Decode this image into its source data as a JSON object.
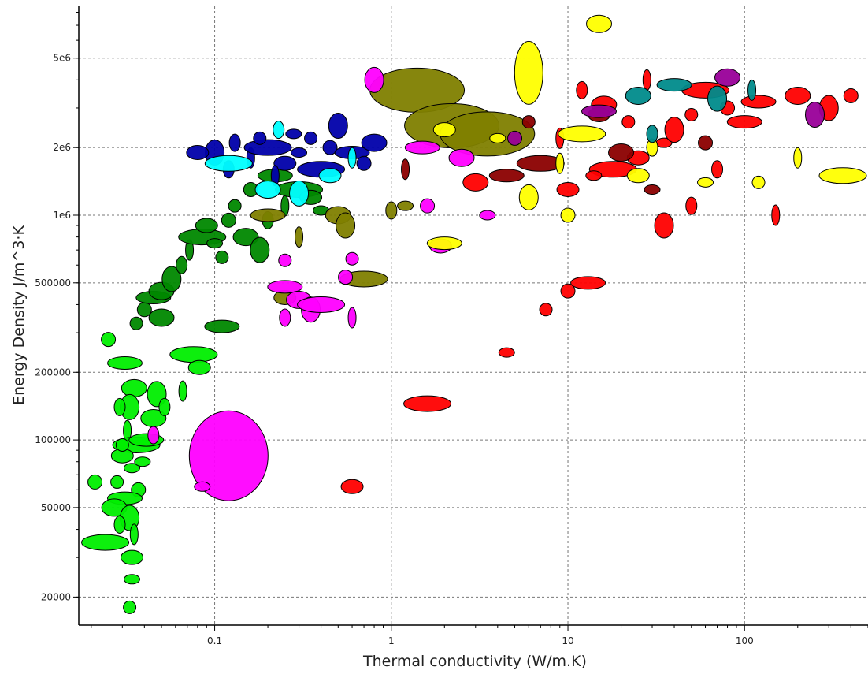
{
  "chart_data": {
    "type": "scatter",
    "title": "",
    "xlabel": "Thermal conductivity (W/m.K)",
    "ylabel": "Energy Density J/m^3·K",
    "x_scale": "log",
    "y_scale": "log",
    "xlim": [
      0.017,
      500
    ],
    "ylim": [
      15000,
      8500000
    ],
    "x_ticks": [
      {
        "value": 0.1,
        "label": "0.1"
      },
      {
        "value": 1,
        "label": "1"
      },
      {
        "value": 10,
        "label": "10"
      },
      {
        "value": 100,
        "label": "100"
      }
    ],
    "y_ticks": [
      {
        "value": 20000,
        "label": "20000"
      },
      {
        "value": 50000,
        "label": "50000"
      },
      {
        "value": 100000,
        "label": "100000"
      },
      {
        "value": 200000,
        "label": "200000"
      },
      {
        "value": 500000,
        "label": "500000"
      },
      {
        "value": 1000000,
        "label": "1e6"
      },
      {
        "value": 2000000,
        "label": "2e6"
      },
      {
        "value": 5000000,
        "label": "5e6"
      }
    ],
    "grid": true,
    "legend": "none",
    "mark_shape": "ellipse",
    "mark_outline_color": "#000000",
    "series": [
      {
        "color": "#00ee00",
        "points": [
          {
            "x": 0.025,
            "y": 280000
          },
          {
            "x": 0.031,
            "y": 220000
          },
          {
            "x": 0.035,
            "y": 170000
          },
          {
            "x": 0.033,
            "y": 140000
          },
          {
            "x": 0.029,
            "y": 140000
          },
          {
            "x": 0.032,
            "y": 110000
          },
          {
            "x": 0.036,
            "y": 95000
          },
          {
            "x": 0.03,
            "y": 85000
          },
          {
            "x": 0.034,
            "y": 75000
          },
          {
            "x": 0.028,
            "y": 65000
          },
          {
            "x": 0.037,
            "y": 60000
          },
          {
            "x": 0.031,
            "y": 55000
          },
          {
            "x": 0.027,
            "y": 50000
          },
          {
            "x": 0.033,
            "y": 45000
          },
          {
            "x": 0.029,
            "y": 42000
          },
          {
            "x": 0.035,
            "y": 38000
          },
          {
            "x": 0.024,
            "y": 35000
          },
          {
            "x": 0.034,
            "y": 30000
          },
          {
            "x": 0.034,
            "y": 24000
          },
          {
            "x": 0.033,
            "y": 18000
          },
          {
            "x": 0.021,
            "y": 65000
          },
          {
            "x": 0.041,
            "y": 100000
          },
          {
            "x": 0.045,
            "y": 125000
          },
          {
            "x": 0.047,
            "y": 160000
          },
          {
            "x": 0.052,
            "y": 140000
          },
          {
            "x": 0.066,
            "y": 165000
          },
          {
            "x": 0.076,
            "y": 240000
          },
          {
            "x": 0.082,
            "y": 210000
          },
          {
            "x": 0.039,
            "y": 80000
          },
          {
            "x": 0.03,
            "y": 95000
          }
        ]
      },
      {
        "color": "#008800",
        "points": [
          {
            "x": 0.036,
            "y": 330000
          },
          {
            "x": 0.04,
            "y": 380000
          },
          {
            "x": 0.045,
            "y": 430000
          },
          {
            "x": 0.05,
            "y": 460000
          },
          {
            "x": 0.057,
            "y": 520000
          },
          {
            "x": 0.065,
            "y": 600000
          },
          {
            "x": 0.072,
            "y": 700000
          },
          {
            "x": 0.085,
            "y": 800000
          },
          {
            "x": 0.09,
            "y": 900000
          },
          {
            "x": 0.1,
            "y": 750000
          },
          {
            "x": 0.11,
            "y": 650000
          },
          {
            "x": 0.12,
            "y": 950000
          },
          {
            "x": 0.11,
            "y": 320000
          },
          {
            "x": 0.15,
            "y": 800000
          },
          {
            "x": 0.18,
            "y": 700000
          },
          {
            "x": 0.2,
            "y": 950000
          },
          {
            "x": 0.25,
            "y": 1100000
          },
          {
            "x": 0.3,
            "y": 1300000
          },
          {
            "x": 0.35,
            "y": 1200000
          },
          {
            "x": 0.4,
            "y": 1050000
          },
          {
            "x": 0.13,
            "y": 1100000
          },
          {
            "x": 0.16,
            "y": 1300000
          },
          {
            "x": 0.22,
            "y": 1500000
          },
          {
            "x": 0.05,
            "y": 350000
          }
        ]
      },
      {
        "color": "#808000",
        "points": [
          {
            "x": 1.4,
            "y": 3600000
          },
          {
            "x": 2.2,
            "y": 2500000
          },
          {
            "x": 3.5,
            "y": 2300000
          },
          {
            "x": 0.2,
            "y": 1000000
          },
          {
            "x": 0.5,
            "y": 1000000
          },
          {
            "x": 0.55,
            "y": 900000
          },
          {
            "x": 1.0,
            "y": 1050000
          },
          {
            "x": 0.3,
            "y": 800000
          },
          {
            "x": 0.7,
            "y": 520000
          },
          {
            "x": 0.25,
            "y": 430000
          },
          {
            "x": 1.2,
            "y": 1100000
          }
        ]
      },
      {
        "color": "#ff00ff",
        "points": [
          {
            "x": 0.12,
            "y": 85000
          },
          {
            "x": 0.085,
            "y": 62000
          },
          {
            "x": 0.6,
            "y": 640000
          },
          {
            "x": 0.55,
            "y": 530000
          },
          {
            "x": 0.25,
            "y": 480000
          },
          {
            "x": 0.3,
            "y": 420000
          },
          {
            "x": 0.35,
            "y": 380000
          },
          {
            "x": 0.25,
            "y": 350000
          },
          {
            "x": 0.6,
            "y": 350000
          },
          {
            "x": 0.4,
            "y": 400000
          },
          {
            "x": 1.9,
            "y": 730000
          },
          {
            "x": 3.5,
            "y": 1000000
          },
          {
            "x": 0.25,
            "y": 630000
          },
          {
            "x": 1.6,
            "y": 1100000
          },
          {
            "x": 1.5,
            "y": 2000000
          },
          {
            "x": 2.5,
            "y": 1800000
          },
          {
            "x": 0.8,
            "y": 4000000
          },
          {
            "x": 0.045,
            "y": 105000
          }
        ]
      },
      {
        "color": "#ff0000",
        "points": [
          {
            "x": 1.6,
            "y": 145000
          },
          {
            "x": 0.6,
            "y": 62000
          },
          {
            "x": 4.5,
            "y": 245000
          },
          {
            "x": 7.5,
            "y": 380000
          },
          {
            "x": 10,
            "y": 460000
          },
          {
            "x": 13,
            "y": 500000
          },
          {
            "x": 3,
            "y": 1400000
          },
          {
            "x": 35,
            "y": 900000
          },
          {
            "x": 50,
            "y": 1100000
          },
          {
            "x": 150,
            "y": 1000000
          },
          {
            "x": 18,
            "y": 1600000
          },
          {
            "x": 25,
            "y": 1800000
          },
          {
            "x": 35,
            "y": 2100000
          },
          {
            "x": 50,
            "y": 2800000
          },
          {
            "x": 80,
            "y": 3000000
          },
          {
            "x": 120,
            "y": 3200000
          },
          {
            "x": 200,
            "y": 3400000
          },
          {
            "x": 300,
            "y": 3000000
          },
          {
            "x": 12,
            "y": 3600000
          },
          {
            "x": 28,
            "y": 4000000
          },
          {
            "x": 60,
            "y": 3600000
          },
          {
            "x": 10,
            "y": 1300000
          },
          {
            "x": 14,
            "y": 1500000
          },
          {
            "x": 22,
            "y": 2600000
          },
          {
            "x": 400,
            "y": 3400000
          },
          {
            "x": 100,
            "y": 2600000
          },
          {
            "x": 16,
            "y": 3100000
          },
          {
            "x": 40,
            "y": 2400000
          },
          {
            "x": 70,
            "y": 1600000
          },
          {
            "x": 9,
            "y": 2200000
          }
        ]
      },
      {
        "color": "#8b0000",
        "points": [
          {
            "x": 1.2,
            "y": 1600000
          },
          {
            "x": 7,
            "y": 1700000
          },
          {
            "x": 15,
            "y": 2800000
          },
          {
            "x": 30,
            "y": 1300000
          },
          {
            "x": 6,
            "y": 2600000
          },
          {
            "x": 60,
            "y": 2100000
          },
          {
            "x": 4.5,
            "y": 1500000
          },
          {
            "x": 20,
            "y": 1900000
          }
        ]
      },
      {
        "color": "#ffff00",
        "points": [
          {
            "x": 6,
            "y": 4300000
          },
          {
            "x": 9,
            "y": 1700000
          },
          {
            "x": 12,
            "y": 2300000
          },
          {
            "x": 25,
            "y": 1500000
          },
          {
            "x": 60,
            "y": 1400000
          },
          {
            "x": 120,
            "y": 1400000
          },
          {
            "x": 10,
            "y": 1000000
          },
          {
            "x": 2,
            "y": 750000
          },
          {
            "x": 15,
            "y": 7100000
          },
          {
            "x": 6,
            "y": 1200000
          },
          {
            "x": 30,
            "y": 2000000
          },
          {
            "x": 200,
            "y": 1800000
          },
          {
            "x": 360,
            "y": 1500000
          },
          {
            "x": 2,
            "y": 2400000
          },
          {
            "x": 4,
            "y": 2200000
          }
        ]
      },
      {
        "color": "#0000aa",
        "points": [
          {
            "x": 0.1,
            "y": 1900000
          },
          {
            "x": 0.13,
            "y": 2100000
          },
          {
            "x": 0.16,
            "y": 1800000
          },
          {
            "x": 0.2,
            "y": 2000000
          },
          {
            "x": 0.25,
            "y": 1700000
          },
          {
            "x": 0.3,
            "y": 1900000
          },
          {
            "x": 0.35,
            "y": 2200000
          },
          {
            "x": 0.45,
            "y": 2000000
          },
          {
            "x": 0.6,
            "y": 1900000
          },
          {
            "x": 0.8,
            "y": 2100000
          },
          {
            "x": 0.5,
            "y": 2500000
          },
          {
            "x": 0.12,
            "y": 1600000
          },
          {
            "x": 0.22,
            "y": 1500000
          },
          {
            "x": 0.4,
            "y": 1600000
          },
          {
            "x": 0.08,
            "y": 1900000
          },
          {
            "x": 0.28,
            "y": 2300000
          },
          {
            "x": 0.18,
            "y": 2200000
          },
          {
            "x": 0.7,
            "y": 1700000
          }
        ]
      },
      {
        "color": "#00ffff",
        "points": [
          {
            "x": 0.2,
            "y": 1300000
          },
          {
            "x": 0.3,
            "y": 1250000
          },
          {
            "x": 0.23,
            "y": 2400000
          },
          {
            "x": 0.6,
            "y": 1800000
          },
          {
            "x": 0.12,
            "y": 1700000
          },
          {
            "x": 0.45,
            "y": 1500000
          }
        ]
      },
      {
        "color": "#008b8b",
        "points": [
          {
            "x": 40,
            "y": 3800000
          },
          {
            "x": 25,
            "y": 3400000
          },
          {
            "x": 70,
            "y": 3300000
          },
          {
            "x": 30,
            "y": 2300000
          },
          {
            "x": 110,
            "y": 3600000
          }
        ]
      },
      {
        "color": "#990099",
        "points": [
          {
            "x": 5,
            "y": 2200000
          },
          {
            "x": 15,
            "y": 2900000
          },
          {
            "x": 80,
            "y": 4100000
          },
          {
            "x": 250,
            "y": 2800000
          }
        ]
      }
    ]
  }
}
